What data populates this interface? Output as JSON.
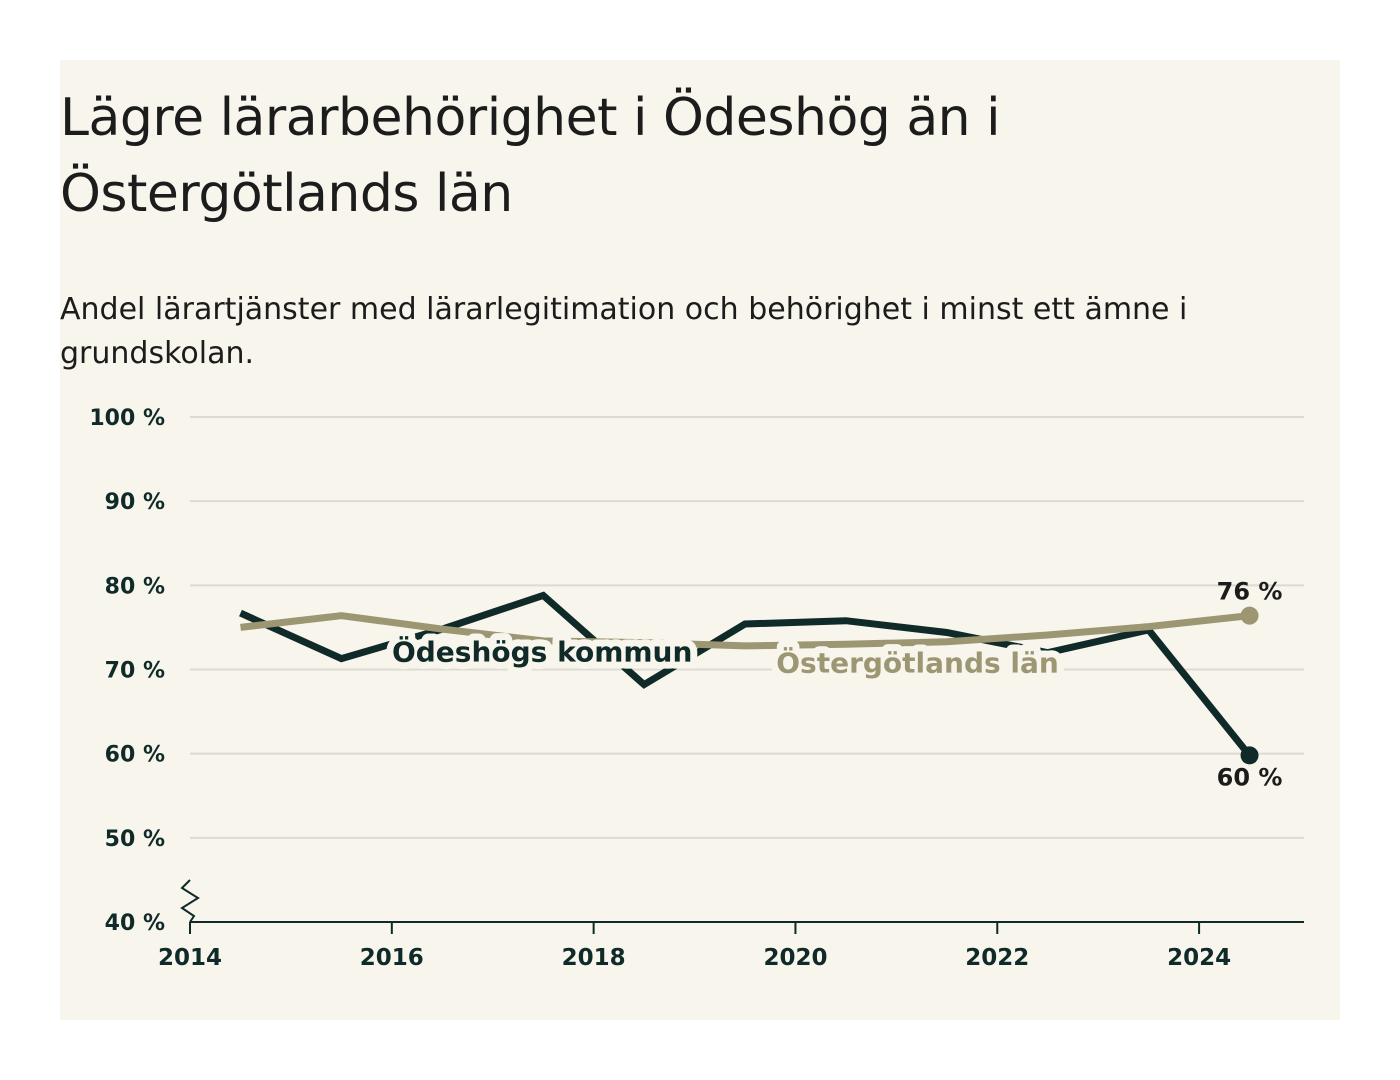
{
  "header": {
    "title": "Lägre lärarbehörighet i Ödeshög än i Östergötlands län",
    "subtitle": "Andel lärartjänster med lärarlegitimation och behörighet i minst ett ämne i grundskolan."
  },
  "colors": {
    "background": "#f7f5ec",
    "odeshog": "#0f2a28",
    "lan": "#9c9673",
    "grid": "#dcdad3",
    "axis": "#0f2a28"
  },
  "chart_data": {
    "type": "line",
    "title": "Lägre lärarbehörighet i Ödeshög än i Östergötlands län",
    "subtitle": "Andel lärartjänster med lärarlegitimation och behörighet i minst ett ämne i grundskolan.",
    "xlabel": "",
    "ylabel": "",
    "xlim": [
      2014,
      2025
    ],
    "ylim": [
      40,
      100
    ],
    "axis_break": true,
    "grid": true,
    "x_ticks": [
      2014,
      2016,
      2018,
      2020,
      2022,
      2024
    ],
    "x_tick_labels": [
      "2014",
      "2016",
      "2018",
      "2020",
      "2022",
      "2024"
    ],
    "y_ticks": [
      40,
      50,
      60,
      70,
      80,
      90,
      100
    ],
    "y_tick_labels": [
      "40 %",
      "50 %",
      "60 %",
      "70 %",
      "80 %",
      "90 %",
      "100 %"
    ],
    "x": [
      2014.5,
      2015.5,
      2016.5,
      2017.5,
      2018.5,
      2019.5,
      2020.5,
      2021.5,
      2022.5,
      2023.5,
      2024.5
    ],
    "series": [
      {
        "name": "Ödeshögs kommun",
        "color": "#0f2a28",
        "values": [
          76.7,
          71.3,
          74.8,
          78.8,
          68.2,
          75.4,
          75.8,
          74.4,
          72.0,
          74.7,
          59.8
        ],
        "end_label": "60 %"
      },
      {
        "name": "Östergötlands län",
        "color": "#9c9673",
        "values": [
          75.0,
          76.4,
          74.8,
          73.4,
          73.2,
          72.8,
          73.0,
          73.3,
          74.1,
          75.1,
          76.4
        ],
        "end_label": "76 %"
      }
    ]
  }
}
